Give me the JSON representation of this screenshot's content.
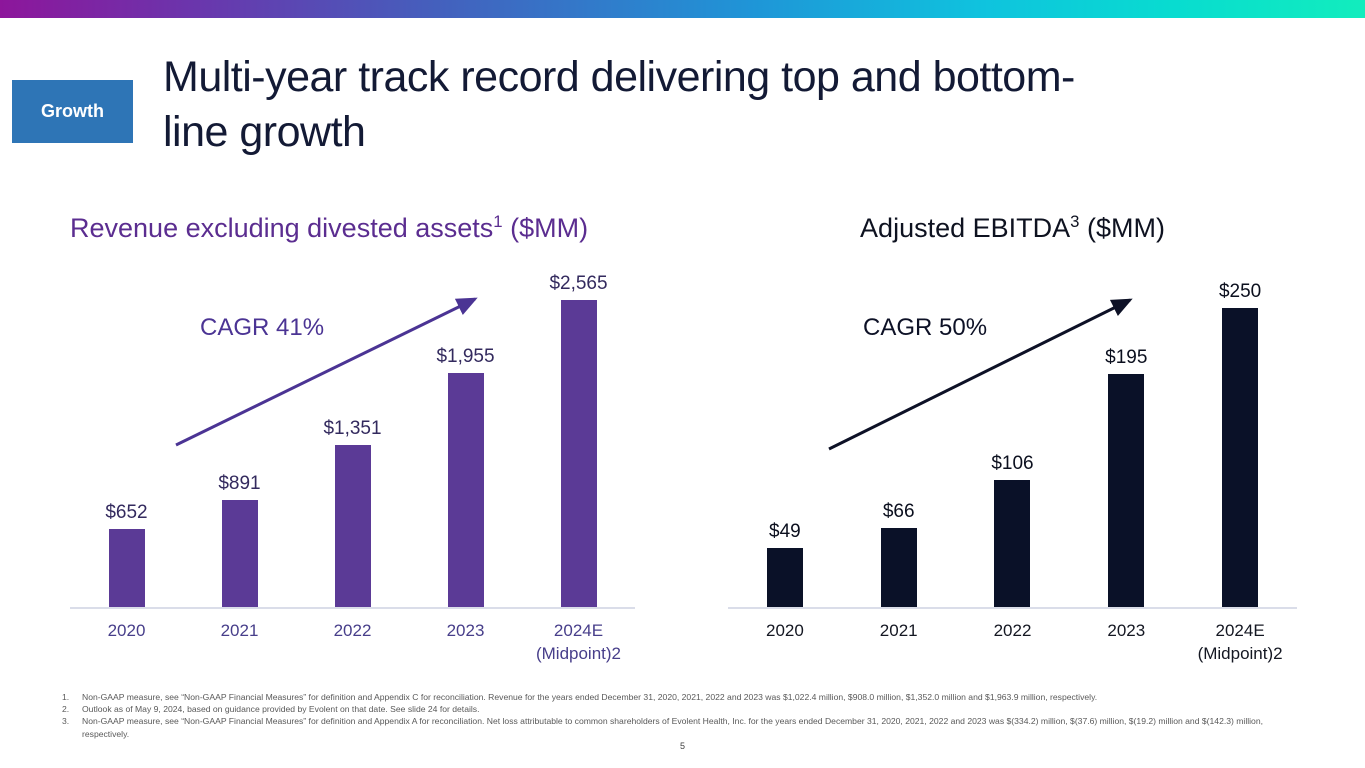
{
  "colors": {
    "gradient_stops": [
      "#8d169b 0%",
      "#6b35ac 14%",
      "#4460bd 32%",
      "#1f95d7 55%",
      "#0fc3de 72%",
      "#08dcd0 86%",
      "#12edbd 100%"
    ],
    "badge_bg": "#2e75b6",
    "badge_text": "#ffffff",
    "slide_title": "#131a35",
    "footnote_text": "#595959",
    "page_number": "#404040"
  },
  "header": {
    "badge": "Growth",
    "title": "Multi-year track record delivering top and bottom-line growth"
  },
  "chart_data": [
    {
      "type": "bar",
      "title_main": "Revenue excluding divested assets",
      "title_sup": "1",
      "title_suffix": " ($MM)",
      "cagr_label": "CAGR 41%",
      "categories": [
        {
          "label": "2020",
          "sublabel": ""
        },
        {
          "label": "2021",
          "sublabel": ""
        },
        {
          "label": "2022",
          "sublabel": ""
        },
        {
          "label": "2023",
          "sublabel": ""
        },
        {
          "label": "2024E",
          "sublabel": "(Midpoint)2"
        }
      ],
      "values": [
        652,
        891,
        1351,
        1955,
        2565
      ],
      "value_labels": [
        "$652",
        "$891",
        "$1,351",
        "$1,955",
        "$2,565"
      ],
      "ylim": [
        0,
        2700
      ],
      "grid": false,
      "legend": false,
      "bar_color": "#5b3a96",
      "value_label_color": "#332a5e",
      "axis_label_color": "#473e8a",
      "title_color": "#5b2d90",
      "arrow_color": "#4b3494",
      "axis_line_color": "#dadde9"
    },
    {
      "type": "bar",
      "title_main": "Adjusted EBITDA",
      "title_sup": "3",
      "title_suffix": " ($MM)",
      "cagr_label": "CAGR 50%",
      "categories": [
        {
          "label": "2020",
          "sublabel": ""
        },
        {
          "label": "2021",
          "sublabel": ""
        },
        {
          "label": "2022",
          "sublabel": ""
        },
        {
          "label": "2023",
          "sublabel": ""
        },
        {
          "label": "2024E",
          "sublabel": "(Midpoint)2"
        }
      ],
      "values": [
        49,
        66,
        106,
        195,
        250
      ],
      "value_labels": [
        "$49",
        "$66",
        "$106",
        "$195",
        "$250"
      ],
      "ylim": [
        0,
        270
      ],
      "grid": false,
      "legend": false,
      "bar_color": "#0a1128",
      "value_label_color": "#0b0f1e",
      "axis_label_color": "#141722",
      "title_color": "#0e1220",
      "arrow_color": "#0d1126",
      "axis_line_color": "#dadde9"
    }
  ],
  "footnotes": [
    {
      "num": "1.",
      "text": "Non-GAAP measure, see “Non-GAAP Financial Measures” for definition and Appendix C for reconciliation. Revenue for the years ended December 31, 2020, 2021, 2022 and 2023 was $1,022.4 million, $908.0 million, $1,352.0 million and $1,963.9 million, respectively."
    },
    {
      "num": "2.",
      "text": "Outlook as of May 9, 2024, based on guidance provided by Evolent on that date. See slide 24 for details."
    },
    {
      "num": "3.",
      "text": "Non-GAAP measure, see “Non-GAAP Financial Measures” for definition and Appendix A for reconciliation. Net loss attributable to common shareholders of Evolent Health, Inc. for the years ended December 31, 2020, 2021, 2022 and 2023 was $(334.2) million, $(37.6) million, $(19.2) million and $(142.3) million, respectively."
    }
  ],
  "page_number": "5"
}
